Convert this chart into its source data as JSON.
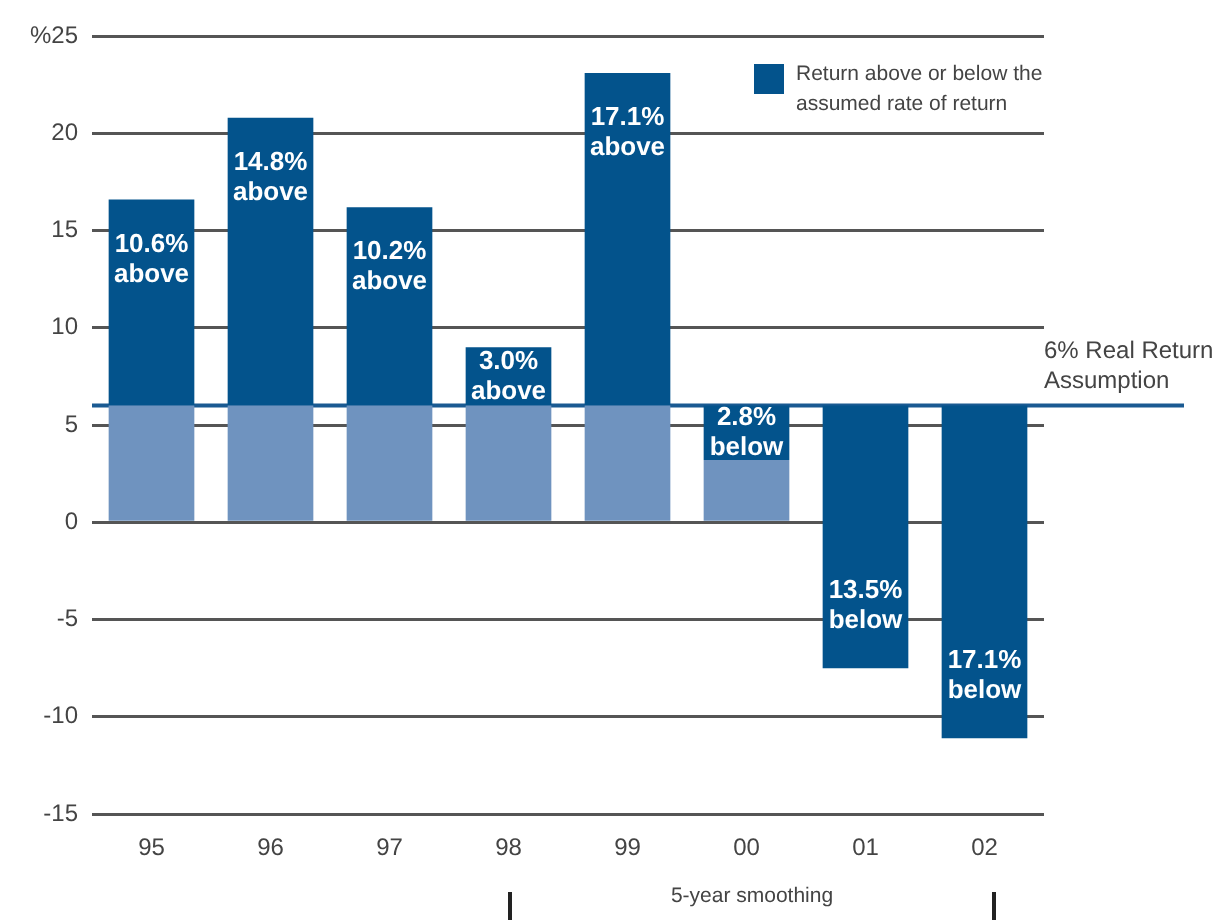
{
  "chart_data": {
    "type": "bar",
    "categories": [
      "95",
      "96",
      "97",
      "98",
      "99",
      "00",
      "01",
      "02"
    ],
    "stacked": true,
    "series": [
      {
        "color": "#6f93bf",
        "values": [
          6,
          6,
          6,
          6,
          6,
          3.2,
          null,
          null
        ]
      },
      {
        "name": "Return above or below the assumed rate of return",
        "color": "#03538c",
        "values": [
          10.6,
          14.8,
          10.2,
          3.0,
          17.1,
          2.8,
          null,
          null
        ],
        "value_labels": [
          "10.6% above",
          "14.8% above",
          "10.2% above",
          "3.0% above",
          "17.1% above",
          "2.8% below",
          null,
          null
        ]
      },
      {
        "color": "#03538c",
        "base": [
          null,
          null,
          null,
          null,
          null,
          null,
          6,
          6
        ],
        "values": [
          null,
          null,
          null,
          null,
          null,
          null,
          -13.5,
          -17.1
        ],
        "value_labels": [
          null,
          null,
          null,
          null,
          null,
          null,
          "13.5% below",
          "17.1% below"
        ]
      }
    ],
    "ylim": [
      -15,
      25
    ],
    "yticks": [
      -15,
      -10,
      -5,
      0,
      5,
      10,
      15,
      20,
      {
        "value": 25,
        "label": "%25"
      }
    ],
    "grid": "y",
    "legend": "top right",
    "ref_lines": [
      {
        "axis": "y",
        "value": 6,
        "label": "6% Real Return Assumption",
        "color": "#1a5a92"
      }
    ],
    "annotations": [
      "5-year smoothing"
    ]
  }
}
